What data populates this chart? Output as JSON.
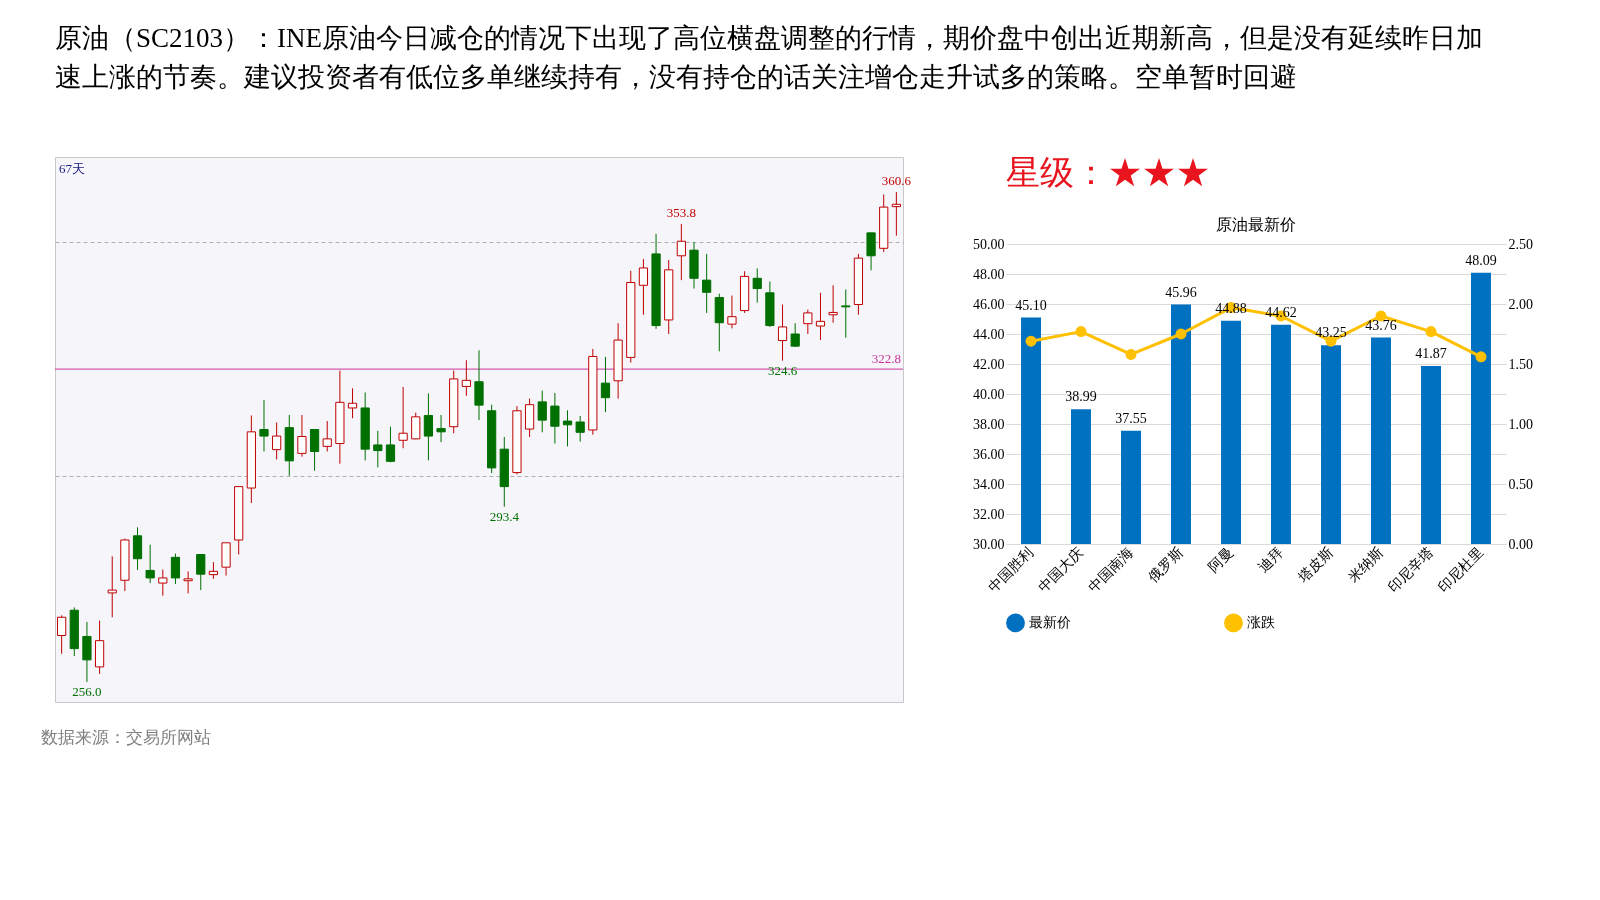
{
  "chart_data": [
    {
      "type": "other",
      "title": "原油（SC2103）：INE原油今日减仓的情况下出现了高位横盘调整的行情，期价盘中创出近期新高，但是没有延续昨日加速上涨的节奏。建议投资者有低位多单继续持有，没有持仓的话关注增仓走升试多的策略。空单暂时回避"
    },
    {
      "type": "candlestick",
      "categories": [
        null,
        null,
        null,
        null,
        null,
        null,
        null,
        null,
        null,
        null,
        null,
        null,
        null,
        null,
        null,
        null,
        null,
        null,
        null,
        null,
        null,
        null,
        null,
        null,
        null,
        null,
        null,
        null,
        null,
        null,
        null,
        null,
        null,
        null,
        null,
        null,
        null,
        null,
        null,
        null,
        null,
        null,
        null,
        null,
        null,
        null,
        null,
        null,
        null,
        null,
        null,
        null,
        null,
        null,
        null,
        null,
        null,
        null,
        null,
        null,
        null,
        null,
        null,
        null,
        null,
        null,
        null
      ],
      "ohlc": [
        [
          265.9,
          270.2,
          262.0,
          269.8
        ],
        [
          271.3,
          271.9,
          261.5,
          263.1
        ],
        [
          265.7,
          268.8,
          256.0,
          260.7
        ],
        [
          259.2,
          269.1,
          257.7,
          264.8
        ],
        [
          275.0,
          282.8,
          269.8,
          275.6
        ],
        [
          277.7,
          286.6,
          275.4,
          286.3
        ],
        [
          287.2,
          289.0,
          279.9,
          282.3
        ],
        [
          279.8,
          285.3,
          277.1,
          278.2
        ],
        [
          277.1,
          280.0,
          274.4,
          278.2
        ],
        [
          282.6,
          283.4,
          276.9,
          278.2
        ],
        [
          277.6,
          279.6,
          274.9,
          278.0
        ],
        [
          283.2,
          283.2,
          275.6,
          279.0
        ],
        [
          278.9,
          281.6,
          278.0,
          279.6
        ],
        [
          280.5,
          285.7,
          278.7,
          285.7
        ],
        [
          286.3,
          297.7,
          283.2,
          297.7
        ],
        [
          297.4,
          312.9,
          294.2,
          309.4
        ],
        [
          309.9,
          316.2,
          305.2,
          308.5
        ],
        [
          305.6,
          311.4,
          303.5,
          308.5
        ],
        [
          310.3,
          313.0,
          300.0,
          303.2
        ],
        [
          304.8,
          313.0,
          304.1,
          308.4
        ],
        [
          309.9,
          309.9,
          301.1,
          305.2
        ],
        [
          306.3,
          311.7,
          305.2,
          307.9
        ],
        [
          306.9,
          322.5,
          302.6,
          315.7
        ],
        [
          314.5,
          318.7,
          312.3,
          315.5
        ],
        [
          314.5,
          317.8,
          303.3,
          305.7
        ],
        [
          306.6,
          309.6,
          301.8,
          305.4
        ],
        [
          306.6,
          310.5,
          302.9,
          303.1
        ],
        [
          307.6,
          319.0,
          305.9,
          309.1
        ],
        [
          307.9,
          313.5,
          307.8,
          312.6
        ],
        [
          312.9,
          317.6,
          303.3,
          308.5
        ],
        [
          310.1,
          313.0,
          307.2,
          309.4
        ],
        [
          310.5,
          322.5,
          309.1,
          320.7
        ],
        [
          319.1,
          324.7,
          317.1,
          320.4
        ],
        [
          320.1,
          326.8,
          311.9,
          315.1
        ],
        [
          313.9,
          315.2,
          300.6,
          301.7
        ],
        [
          305.7,
          308.3,
          293.4,
          297.7
        ],
        [
          300.7,
          314.9,
          300.3,
          313.9
        ],
        [
          310.0,
          316.5,
          308.3,
          315.2
        ],
        [
          315.8,
          318.2,
          309.3,
          311.9
        ],
        [
          314.9,
          317.7,
          306.9,
          310.6
        ],
        [
          311.7,
          314.0,
          306.3,
          310.9
        ],
        [
          311.5,
          312.8,
          307.3,
          309.3
        ],
        [
          309.8,
          327.1,
          308.8,
          325.5
        ],
        [
          319.8,
          325.4,
          313.6,
          316.7
        ],
        [
          320.3,
          332.6,
          316.5,
          329.0
        ],
        [
          325.3,
          343.8,
          324.2,
          341.3
        ],
        [
          340.7,
          346.3,
          334.4,
          344.4
        ],
        [
          347.4,
          351.7,
          331.4,
          332.1
        ],
        [
          333.3,
          346.1,
          330.3,
          344.0
        ],
        [
          347.0,
          353.8,
          341.8,
          350.1
        ],
        [
          348.2,
          349.9,
          340.0,
          342.2
        ],
        [
          341.8,
          347.4,
          334.8,
          339.2
        ],
        [
          338.1,
          338.9,
          326.6,
          332.7
        ],
        [
          332.4,
          338.5,
          331.5,
          334.0
        ],
        [
          335.3,
          343.7,
          334.8,
          342.6
        ],
        [
          342.2,
          344.3,
          337.0,
          340.0
        ],
        [
          339.1,
          341.5,
          331.8,
          332.1
        ],
        [
          328.9,
          336.6,
          324.6,
          331.8
        ],
        [
          330.3,
          332.6,
          327.5,
          327.7
        ],
        [
          332.5,
          335.5,
          330.3,
          334.8
        ],
        [
          332.0,
          339.1,
          329.0,
          333.0
        ],
        [
          334.4,
          340.7,
          332.7,
          334.9
        ],
        [
          336.3,
          339.8,
          329.5,
          336.1
        ],
        [
          336.6,
          347.4,
          334.4,
          346.5
        ],
        [
          351.9,
          351.9,
          343.9,
          347.0
        ],
        [
          348.6,
          360.1,
          347.8,
          357.4
        ],
        [
          357.5,
          360.6,
          351.3,
          358.0
        ]
      ],
      "ylim": [
        251.7,
        368.1
      ],
      "yticks": [
        {
          "value": 300,
          "label": null
        },
        {
          "value": 350,
          "label": null
        }
      ],
      "grid": "y",
      "tick_labels": false,
      "ref_lines": [
        {
          "axis": "y",
          "value": 322.8,
          "label": "322.8",
          "color": "#cc3399"
        }
      ],
      "annotations": [
        {
          "text": "360.6",
          "y": 360.6
        },
        {
          "text": "353.8",
          "y": 353.8
        },
        {
          "text": "324.6",
          "y": 324.6
        },
        {
          "text": "293.4",
          "y": 293.4
        },
        {
          "text": "256.0",
          "y": 256.0
        },
        {
          "text": "67天"
        },
        "数据来源：交易所网站"
      ]
    },
    {
      "type": "other",
      "title": "星级：★★★",
      "color": "#e8141e"
    },
    {
      "type": "bar",
      "title": "原油最新价",
      "categories": [
        "中国胜利",
        "中国大庆",
        "中国南海",
        "俄罗斯",
        "阿曼",
        "迪拜",
        "塔皮斯",
        "米纳斯",
        "印尼辛塔",
        "印尼杜里"
      ],
      "series": [
        {
          "name": "最新价",
          "type": "bar",
          "color": "#0070c0",
          "values": [
            45.1,
            38.99,
            37.55,
            45.96,
            44.88,
            44.62,
            43.25,
            43.76,
            41.87,
            48.09
          ],
          "value_labels": [
            "45.10",
            "38.99",
            "37.55",
            "45.96",
            "44.88",
            "44.62",
            "43.25",
            "43.76",
            "41.87",
            "48.09"
          ]
        },
        {
          "name": "涨跌",
          "type": "line",
          "axis": "y2",
          "color": "#ffc000",
          "marker": "circle",
          "values": [
            1.69,
            1.77,
            1.58,
            1.75,
            1.97,
            1.9,
            1.69,
            1.9,
            1.77,
            1.56
          ]
        }
      ],
      "ylim": [
        30,
        50
      ],
      "yticks": [
        {
          "value": 30,
          "label": "30.00"
        },
        {
          "value": 32,
          "label": "32.00"
        },
        {
          "value": 34,
          "label": "34.00"
        },
        {
          "value": 36,
          "label": "36.00"
        },
        {
          "value": 38,
          "label": "38.00"
        },
        {
          "value": 40,
          "label": "40.00"
        },
        {
          "value": 42,
          "label": "42.00"
        },
        {
          "value": 44,
          "label": "44.00"
        },
        {
          "value": 46,
          "label": "46.00"
        },
        {
          "value": 48,
          "label": "48.00"
        },
        {
          "value": 50,
          "label": "50.00"
        }
      ],
      "y2lim": [
        0,
        2.5
      ],
      "y2ticks": [
        {
          "value": 0,
          "label": "0.00"
        },
        {
          "value": 0.5,
          "label": "0.50"
        },
        {
          "value": 1,
          "label": "1.00"
        },
        {
          "value": 1.5,
          "label": "1.50"
        },
        {
          "value": 2,
          "label": "2.00"
        },
        {
          "value": 2.5,
          "label": "2.50"
        }
      ],
      "grid": "y",
      "legend": "bottom"
    }
  ]
}
